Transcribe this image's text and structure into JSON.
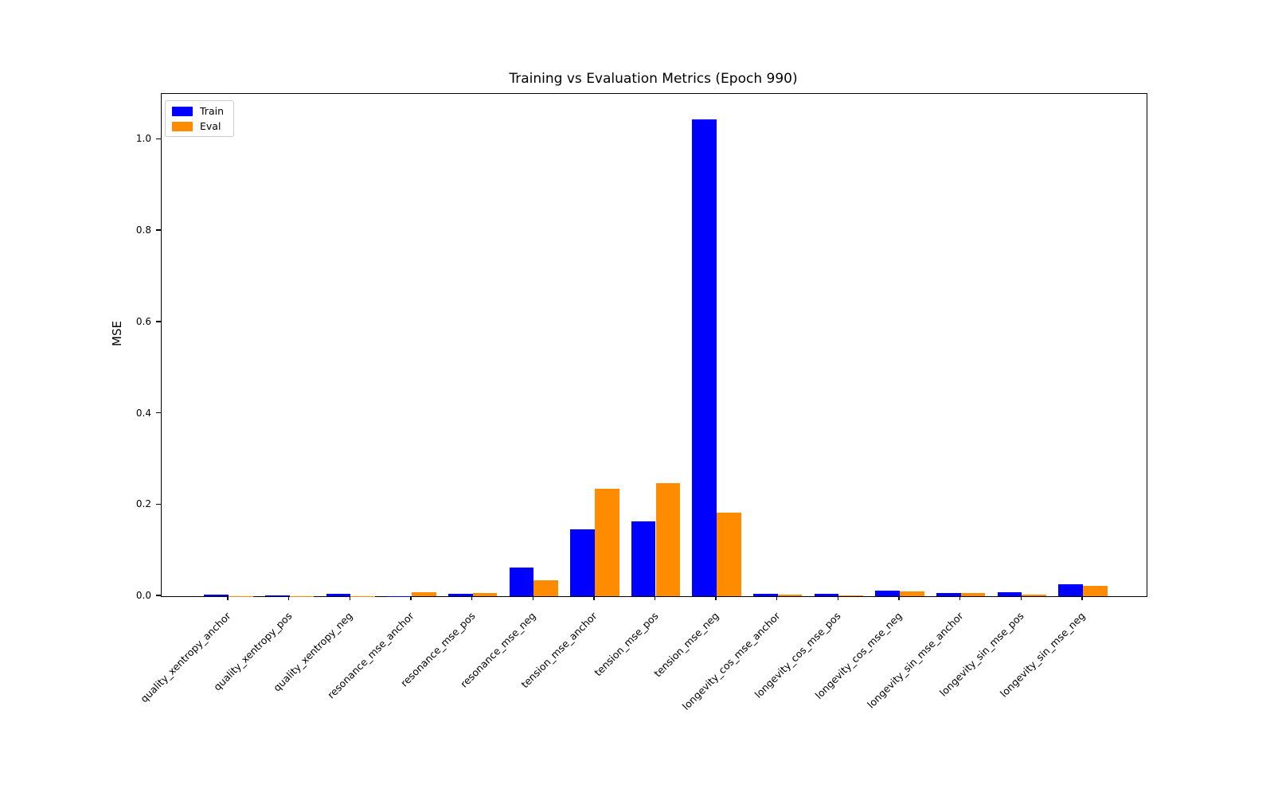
{
  "chart_data": {
    "type": "bar",
    "title": "Training vs Evaluation Metrics (Epoch 990)",
    "xlabel": "",
    "ylabel": "MSE",
    "categories": [
      "quality_xentropy_anchor",
      "quality_xentropy_pos",
      "quality_xentropy_neg",
      "resonance_mse_anchor",
      "resonance_mse_pos",
      "resonance_mse_neg",
      "tension_mse_anchor",
      "tension_mse_pos",
      "tension_mse_neg",
      "longevity_cos_mse_anchor",
      "longevity_cos_mse_pos",
      "longevity_cos_mse_neg",
      "longevity_sin_mse_anchor",
      "longevity_sin_mse_pos",
      "longevity_sin_mse_neg"
    ],
    "series": [
      {
        "name": "Train",
        "color": "#0000ff",
        "values": [
          0.004,
          0.001,
          0.006,
          0.0005,
          0.005,
          0.062,
          0.147,
          0.164,
          1.045,
          0.005,
          0.005,
          0.013,
          0.007,
          0.009,
          0.026
        ]
      },
      {
        "name": "Eval",
        "color": "#ff8c00",
        "values": [
          0.0005,
          0.0003,
          0.0005,
          0.008,
          0.007,
          0.034,
          0.235,
          0.248,
          0.183,
          0.004,
          0.002,
          0.011,
          0.007,
          0.004,
          0.022
        ]
      }
    ],
    "yticks": [
      "0.0",
      "0.2",
      "0.4",
      "0.6",
      "0.8",
      "1.0"
    ],
    "ylim": [
      0,
      1.1
    ],
    "bar_width_fraction": 0.4,
    "legend": {
      "position": "upper left",
      "entries": [
        "Train",
        "Eval"
      ]
    },
    "grid": false
  },
  "colors": {
    "background": "#ffffff",
    "axis": "#000000",
    "text": "#000000",
    "legend_border": "#cccccc"
  }
}
